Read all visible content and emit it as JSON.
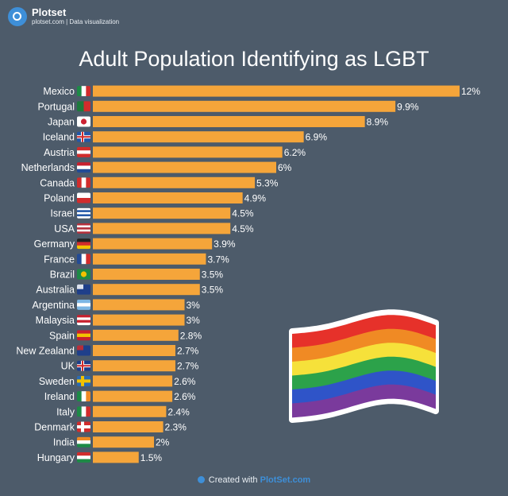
{
  "brand": {
    "name": "Plotset",
    "subtitle": "plotset.com | Data visualization"
  },
  "footer": {
    "prefix": "Created with",
    "link": "PlotSet.com"
  },
  "colors": {
    "background": "#4d5b6a",
    "bar": "#f5a53a"
  },
  "chart_data": {
    "type": "bar",
    "orientation": "horizontal",
    "title": "Adult Population Identifying as LGBT",
    "categories": [
      "Mexico",
      "Portugal",
      "Japan",
      "Iceland",
      "Austria",
      "Netherlands",
      "Canada",
      "Poland",
      "Israel",
      "USA",
      "Germany",
      "France",
      "Brazil",
      "Australia",
      "Argentina",
      "Malaysia",
      "Spain",
      "New Zealand",
      "UK",
      "Sweden",
      "Ireland",
      "Italy",
      "Denmark",
      "India",
      "Hungary"
    ],
    "values": [
      12,
      9.9,
      8.9,
      6.9,
      6.2,
      6,
      5.3,
      4.9,
      4.5,
      4.5,
      3.9,
      3.7,
      3.5,
      3.5,
      3,
      3,
      2.8,
      2.7,
      2.7,
      2.6,
      2.6,
      2.4,
      2.3,
      2,
      1.5
    ],
    "value_labels": [
      "12%",
      "9.9%",
      "8.9%",
      "6.9%",
      "6.2%",
      "6%",
      "5.3%",
      "4.9%",
      "4.5%",
      "4.5%",
      "3.9%",
      "3.7%",
      "3.5%",
      "3.5%",
      "3%",
      "3%",
      "2.8%",
      "2.7%",
      "2.7%",
      "2.6%",
      "2.6%",
      "2.4%",
      "2.3%",
      "2%",
      "1.5%"
    ],
    "flags": [
      {
        "icon": "mexico-flag-icon",
        "colors": [
          "#1d8a46",
          "#ffffff",
          "#d12c2c"
        ],
        "layout": "v"
      },
      {
        "icon": "portugal-flag-icon",
        "colors": [
          "#1d7a3c",
          "#d12c2c"
        ],
        "layout": "v"
      },
      {
        "icon": "japan-flag-icon",
        "colors": [
          "#ffffff",
          "#cc2233"
        ],
        "layout": "circle"
      },
      {
        "icon": "iceland-flag-icon",
        "colors": [
          "#2357a8",
          "#ffffff",
          "#d12c2c"
        ],
        "layout": "cross"
      },
      {
        "icon": "austria-flag-icon",
        "colors": [
          "#d12c2c",
          "#ffffff",
          "#d12c2c"
        ],
        "layout": "h"
      },
      {
        "icon": "netherlands-flag-icon",
        "colors": [
          "#c8202e",
          "#ffffff",
          "#234b96"
        ],
        "layout": "h"
      },
      {
        "icon": "canada-flag-icon",
        "colors": [
          "#d12c2c",
          "#ffffff",
          "#d12c2c"
        ],
        "layout": "v"
      },
      {
        "icon": "poland-flag-icon",
        "colors": [
          "#ffffff",
          "#d12c2c"
        ],
        "layout": "h"
      },
      {
        "icon": "israel-flag-icon",
        "colors": [
          "#ffffff",
          "#2357a8",
          "#ffffff",
          "#2357a8",
          "#ffffff"
        ],
        "layout": "h"
      },
      {
        "icon": "usa-flag-icon",
        "colors": [
          "#b5303c",
          "#ffffff",
          "#b5303c",
          "#ffffff",
          "#b5303c"
        ],
        "layout": "h"
      },
      {
        "icon": "germany-flag-icon",
        "colors": [
          "#222222",
          "#d12c2c",
          "#f2c200"
        ],
        "layout": "h"
      },
      {
        "icon": "france-flag-icon",
        "colors": [
          "#234b96",
          "#ffffff",
          "#d12c2c"
        ],
        "layout": "v"
      },
      {
        "icon": "brazil-flag-icon",
        "colors": [
          "#1d8a46",
          "#f2c200"
        ],
        "layout": "circle"
      },
      {
        "icon": "australia-flag-icon",
        "colors": [
          "#1f3f8a",
          "#ffffff"
        ],
        "layout": "solid"
      },
      {
        "icon": "argentina-flag-icon",
        "colors": [
          "#7cb6e4",
          "#ffffff",
          "#7cb6e4"
        ],
        "layout": "h"
      },
      {
        "icon": "malaysia-flag-icon",
        "colors": [
          "#c8202e",
          "#ffffff",
          "#c8202e",
          "#ffffff"
        ],
        "layout": "h"
      },
      {
        "icon": "spain-flag-icon",
        "colors": [
          "#c8202e",
          "#f2c200",
          "#c8202e"
        ],
        "layout": "h"
      },
      {
        "icon": "new-zealand-flag-icon",
        "colors": [
          "#1f3f8a",
          "#d12c2c"
        ],
        "layout": "solid"
      },
      {
        "icon": "uk-flag-icon",
        "colors": [
          "#1f3f8a",
          "#ffffff",
          "#d12c2c"
        ],
        "layout": "cross"
      },
      {
        "icon": "sweden-flag-icon",
        "colors": [
          "#2a6bb5",
          "#f2c200",
          "#f2c200"
        ],
        "layout": "cross"
      },
      {
        "icon": "ireland-flag-icon",
        "colors": [
          "#1d8a46",
          "#ffffff",
          "#f08a24"
        ],
        "layout": "v"
      },
      {
        "icon": "italy-flag-icon",
        "colors": [
          "#1d8a46",
          "#ffffff",
          "#d12c2c"
        ],
        "layout": "v"
      },
      {
        "icon": "denmark-flag-icon",
        "colors": [
          "#d12c2c",
          "#ffffff",
          "#ffffff"
        ],
        "layout": "cross"
      },
      {
        "icon": "india-flag-icon",
        "colors": [
          "#f08a24",
          "#ffffff",
          "#1d8a46"
        ],
        "layout": "h"
      },
      {
        "icon": "hungary-flag-icon",
        "colors": [
          "#d12c2c",
          "#ffffff",
          "#1d8a46"
        ],
        "layout": "h"
      }
    ]
  },
  "decoration": {
    "icon": "rainbow-pride-flag-icon",
    "colors": [
      "#e6312a",
      "#f08a24",
      "#f6e13a",
      "#2ca24a",
      "#2f54c8",
      "#7a3a9c"
    ]
  }
}
